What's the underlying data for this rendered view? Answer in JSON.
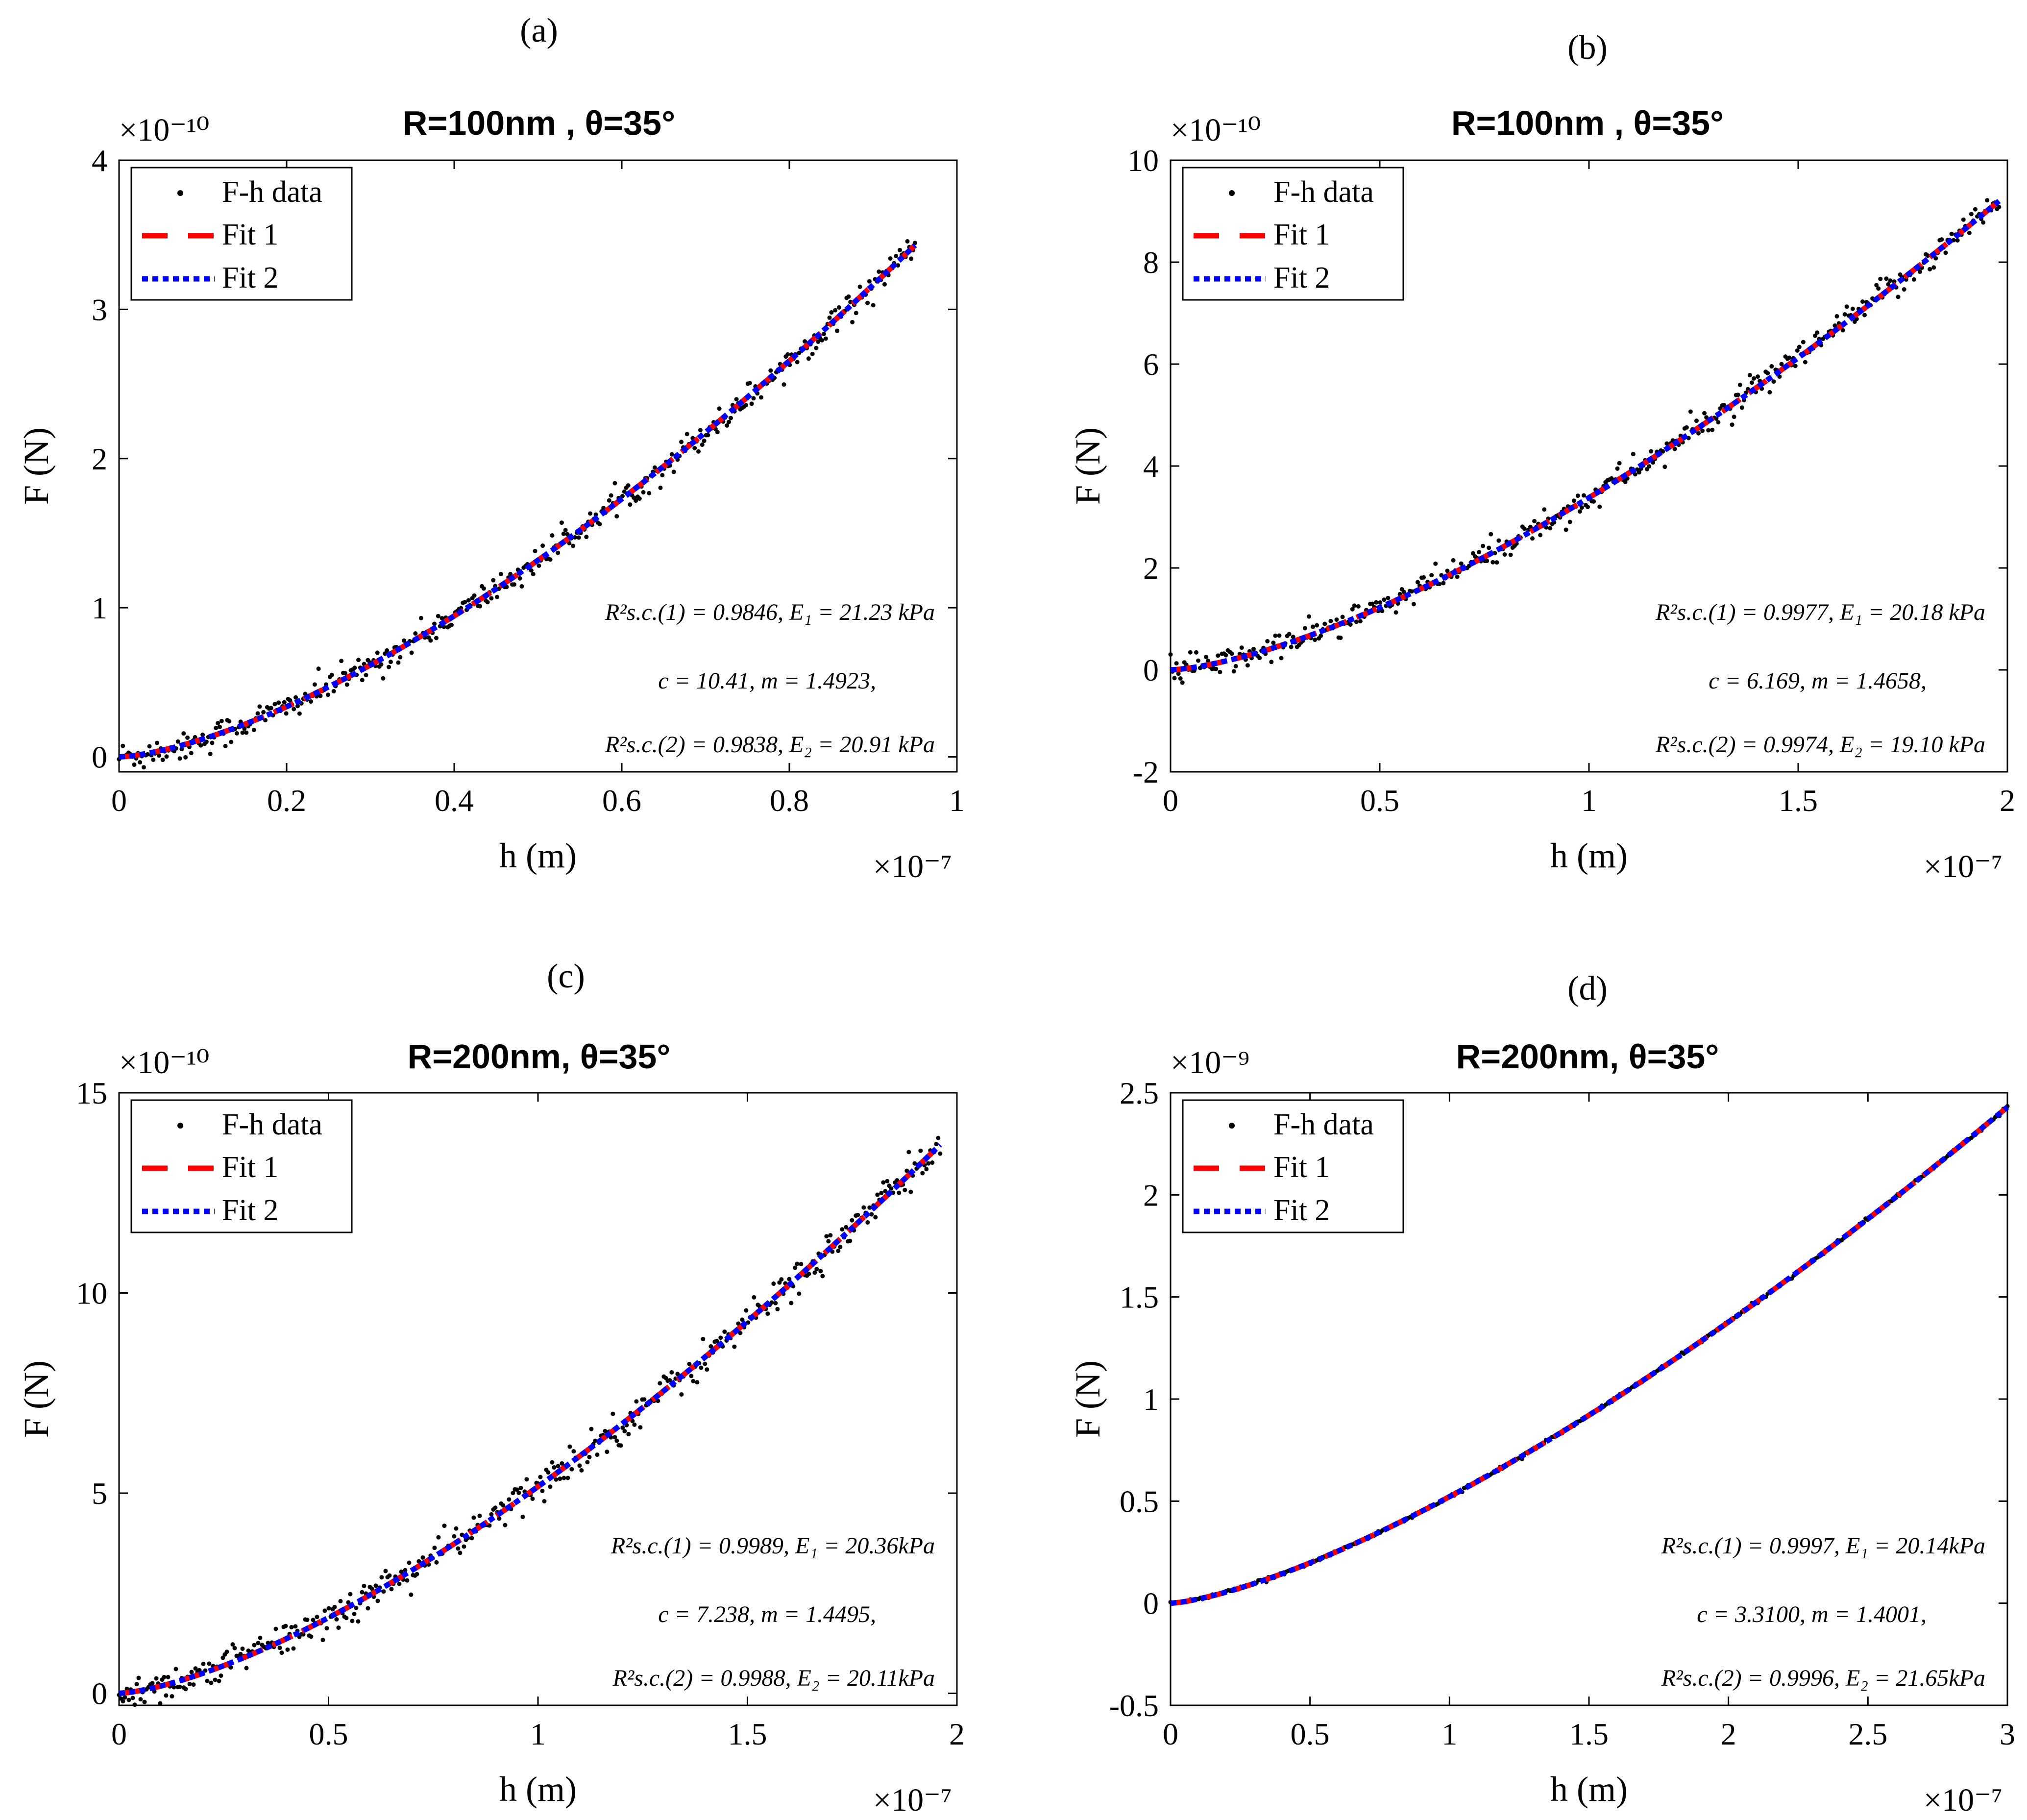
{
  "chart_data": [
    {
      "panel_label": "(a)",
      "type": "scatter",
      "title": "R=100nm , θ=35°",
      "xlabel": "h (m)",
      "ylabel": "F (N)",
      "x_multiplier": "×10⁻⁷",
      "y_multiplier": "×10⁻¹⁰",
      "xlim": [
        0,
        1
      ],
      "ylim": [
        -0.1,
        4
      ],
      "xticks": [
        0,
        0.2,
        0.4,
        0.6,
        0.8,
        1
      ],
      "xtick_labels": [
        "0",
        "0.2",
        "0.4",
        "0.6",
        "0.8",
        "1"
      ],
      "yticks": [
        0,
        1,
        2,
        3,
        4
      ],
      "ytick_labels": [
        "0",
        "1",
        "2",
        "3",
        "4"
      ],
      "legend": {
        "entries": [
          "F-h data",
          "Fit 1",
          "Fit 2"
        ],
        "placement": "top-left"
      },
      "fit": {
        "x_max": 0.95,
        "y_max": 3.43,
        "exponent": 1.49
      },
      "data_noise": 0.12,
      "annotations": [
        "R²s.c.(1) = 0.9846,  E₁ = 21.23 kPa",
        "c = 10.41,  m = 1.4923,",
        "R²s.c.(2) = 0.9838,  E₂ = 20.91 kPa"
      ]
    },
    {
      "panel_label": "(b)",
      "type": "scatter",
      "title": "R=100nm , θ=35°",
      "xlabel": "h (m)",
      "ylabel": "F (N)",
      "x_multiplier": "×10⁻⁷",
      "y_multiplier": "×10⁻¹⁰",
      "xlim": [
        0,
        2
      ],
      "ylim": [
        -2,
        10
      ],
      "xticks": [
        0,
        0.5,
        1,
        1.5,
        2
      ],
      "xtick_labels": [
        "0",
        "0.5",
        "1",
        "1.5",
        "2"
      ],
      "yticks": [
        -2,
        0,
        2,
        4,
        6,
        8,
        10
      ],
      "ytick_labels": [
        "-2",
        "0",
        "2",
        "4",
        "6",
        "8",
        "10"
      ],
      "legend": {
        "entries": [
          "F-h data",
          "Fit 1",
          "Fit 2"
        ],
        "placement": "top-left"
      },
      "fit": {
        "x_max": 1.98,
        "y_max": 9.2,
        "exponent": 1.466
      },
      "data_noise": 0.12,
      "annotations": [
        "R²s.c.(1) = 0.9977,  E₁ = 20.18 kPa",
        "c = 6.169,  m = 1.4658,",
        "R²s.c.(2) = 0.9974,  E₂ = 19.10 kPa"
      ]
    },
    {
      "panel_label": "(c)",
      "type": "scatter",
      "title": "R=200nm, θ=35°",
      "xlabel": "h (m)",
      "ylabel": "F (N)",
      "x_multiplier": "×10⁻⁷",
      "y_multiplier": "×10⁻¹⁰",
      "xlim": [
        0,
        2
      ],
      "ylim": [
        -0.3,
        15
      ],
      "xticks": [
        0,
        0.5,
        1,
        1.5,
        2
      ],
      "xtick_labels": [
        "0",
        "0.5",
        "1",
        "1.5",
        "2"
      ],
      "yticks": [
        0,
        5,
        10,
        15
      ],
      "ytick_labels": [
        "0",
        "5",
        "10",
        "15"
      ],
      "legend": {
        "entries": [
          "F-h data",
          "Fit 1",
          "Fit 2"
        ],
        "placement": "top-left"
      },
      "fit": {
        "x_max": 1.96,
        "y_max": 13.7,
        "exponent": 1.45
      },
      "data_noise": 0.15,
      "annotations": [
        "R²s.c.(1) = 0.9989,  E₁ = 20.36kPa",
        "c = 7.238,  m = 1.4495,",
        "R²s.c.(2) = 0.9988,  E₂ = 20.11kPa"
      ]
    },
    {
      "panel_label": "(d)",
      "type": "scatter",
      "title": "R=200nm, θ=35°",
      "xlabel": "h (m)",
      "ylabel": "F (N)",
      "x_multiplier": "×10⁻⁷",
      "y_multiplier": "×10⁻⁹",
      "xlim": [
        0,
        3
      ],
      "ylim": [
        -0.5,
        2.5
      ],
      "xticks": [
        0,
        0.5,
        1,
        1.5,
        2,
        2.5,
        3
      ],
      "xtick_labels": [
        "0",
        "0.5",
        "1",
        "1.5",
        "2",
        "2.5",
        "3"
      ],
      "yticks": [
        -0.5,
        0,
        0.5,
        1,
        1.5,
        2,
        2.5
      ],
      "ytick_labels": [
        "-0.5",
        "0",
        "0.5",
        "1",
        "1.5",
        "2",
        "2.5"
      ],
      "legend": {
        "entries": [
          "F-h data",
          "Fit 1",
          "Fit 2"
        ],
        "placement": "top-left"
      },
      "fit": {
        "x_max": 3.0,
        "y_max": 2.43,
        "exponent": 1.4
      },
      "data_noise": 0.012,
      "annotations": [
        "R²s.c.(1) = 0.9997,  E₁ = 20.14kPa",
        "c = 3.3100,  m = 1.4001,",
        "R²s.c.(2) = 0.9996,  E₂ = 21.65kPa"
      ]
    }
  ],
  "colors": {
    "data": "#000000",
    "fit1": "#ff0000",
    "fit2": "#0000ff",
    "axis": "#000000"
  }
}
